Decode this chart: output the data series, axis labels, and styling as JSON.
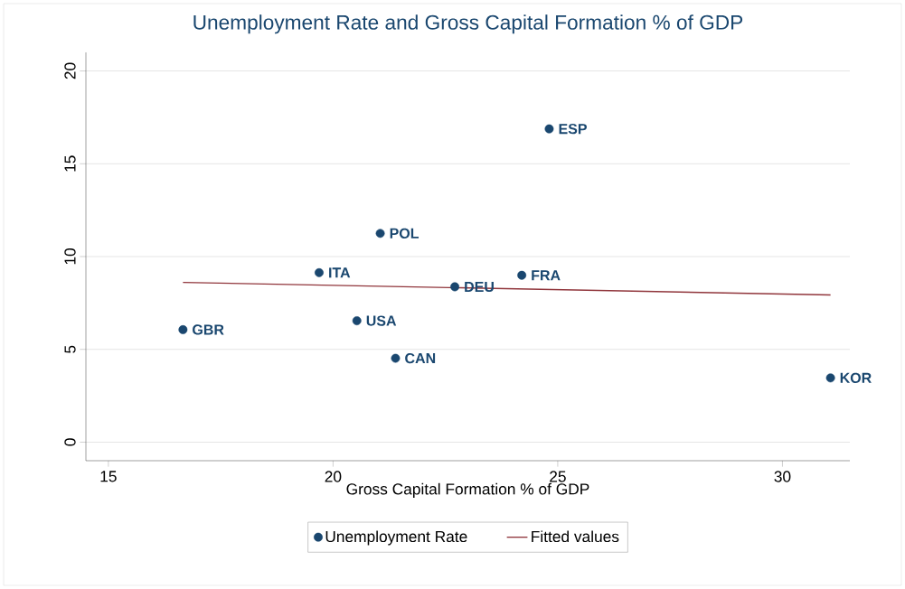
{
  "chart_data": {
    "type": "scatter",
    "title": "Unemployment Rate and Gross Capital Formation % of GDP",
    "xlabel": "Gross Capital Formation % of GDP",
    "xlim": [
      14.5,
      31.5
    ],
    "ylim": [
      -1,
      21
    ],
    "xticks": [
      15,
      20,
      25,
      30
    ],
    "yticks": [
      0,
      5,
      10,
      15,
      20
    ],
    "grid": "y",
    "legend": "bottom",
    "series": [
      {
        "name": "Unemployment Rate",
        "marker": "circle",
        "color": "#1a476f",
        "x": [
          16.66,
          19.69,
          20.53,
          21.05,
          21.39,
          22.71,
          24.2,
          24.81,
          31.07
        ],
        "values": [
          6.06,
          9.13,
          6.54,
          11.25,
          4.52,
          8.37,
          8.99,
          16.88,
          3.46
        ]
      },
      {
        "name": "Fitted values",
        "type": "line",
        "marker": "none",
        "color": "#90353b",
        "x": [
          16.66,
          31.07
        ],
        "values": [
          8.61,
          7.93
        ]
      }
    ],
    "annotations": [
      {
        "text": "GBR",
        "x": 16.66,
        "y": 6.06
      },
      {
        "text": "ITA",
        "x": 19.69,
        "y": 9.13
      },
      {
        "text": "USA",
        "x": 20.53,
        "y": 6.54
      },
      {
        "text": "POL",
        "x": 21.05,
        "y": 11.25
      },
      {
        "text": "CAN",
        "x": 21.39,
        "y": 4.52
      },
      {
        "text": "DEU",
        "x": 22.71,
        "y": 8.37
      },
      {
        "text": "FRA",
        "x": 24.2,
        "y": 8.99
      },
      {
        "text": "ESP",
        "x": 24.81,
        "y": 16.88
      },
      {
        "text": "KOR",
        "x": 31.07,
        "y": 3.46
      }
    ]
  }
}
